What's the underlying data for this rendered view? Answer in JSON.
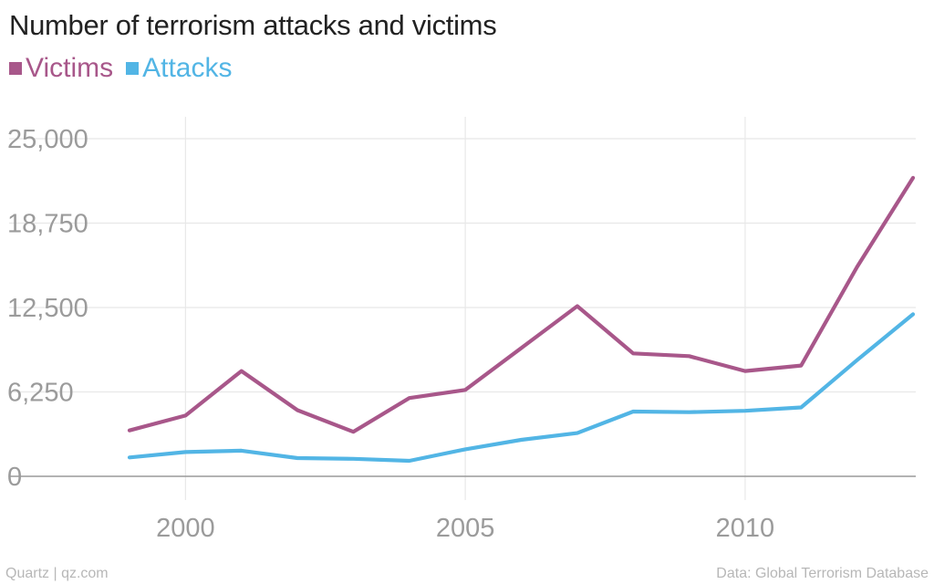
{
  "chart_data": {
    "type": "line",
    "title": "Number of terrorism attacks and victims",
    "xlabel": "",
    "ylabel": "",
    "x": [
      1999,
      2000,
      2001,
      2002,
      2003,
      2004,
      2005,
      2006,
      2007,
      2008,
      2009,
      2010,
      2011,
      2012,
      2013
    ],
    "xlim": [
      1998,
      2013
    ],
    "ylim": [
      0,
      25000
    ],
    "y_ticks": [
      0,
      6250,
      12500,
      18750,
      25000
    ],
    "y_tick_labels": [
      "0",
      "6,250",
      "12,500",
      "18,750",
      "25,000"
    ],
    "x_ticks": [
      2000,
      2005,
      2010
    ],
    "x_tick_labels": [
      "2000",
      "2005",
      "2010"
    ],
    "grid": true,
    "legend_position": "top-left",
    "series": [
      {
        "name": "Victims",
        "color": "#a8578a",
        "values": [
          3400,
          4500,
          7800,
          4900,
          3300,
          5800,
          6400,
          9500,
          12600,
          9100,
          8900,
          7800,
          8200,
          15500,
          22100
        ]
      },
      {
        "name": "Attacks",
        "color": "#52b5e5",
        "values": [
          1400,
          1800,
          1900,
          1350,
          1300,
          1150,
          2000,
          2700,
          3200,
          4800,
          4750,
          4850,
          5100,
          8600,
          12000
        ]
      }
    ]
  },
  "footer": {
    "source_left": "Quartz | qz.com",
    "source_right": "Data: Global Terrorism Database"
  }
}
